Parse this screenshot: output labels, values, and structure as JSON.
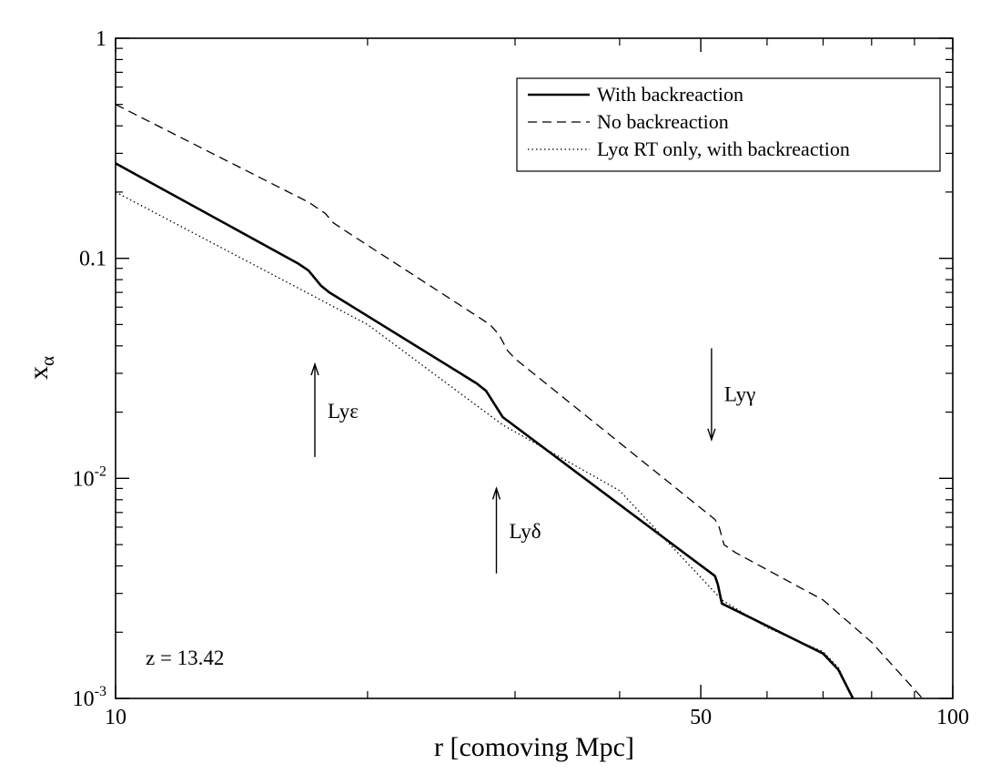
{
  "chart_data": {
    "type": "line",
    "x_scale": "log",
    "y_scale": "log",
    "xlim": [
      10,
      100
    ],
    "ylim": [
      0.001,
      1
    ],
    "xlabel": "r [comoving Mpc]",
    "ylabel": {
      "base": "x",
      "sub": "α"
    },
    "x_ticks": [
      {
        "value": 10,
        "label": "10"
      },
      {
        "value": 50,
        "label": "50"
      },
      {
        "value": 100,
        "label": "100"
      }
    ],
    "x_minor_ticks": [
      20,
      30,
      40,
      60,
      70,
      80,
      90
    ],
    "y_ticks": [
      {
        "value": 1,
        "base": "1",
        "exp": ""
      },
      {
        "value": 0.1,
        "base": "0.1",
        "exp": ""
      },
      {
        "value": 0.01,
        "base": "10",
        "exp": "-2"
      },
      {
        "value": 0.001,
        "base": "10",
        "exp": "-3"
      }
    ],
    "y_minor_ticks": [
      0.002,
      0.003,
      0.004,
      0.005,
      0.006,
      0.007,
      0.008,
      0.009,
      0.02,
      0.03,
      0.04,
      0.05,
      0.06,
      0.07,
      0.08,
      0.09,
      0.2,
      0.3,
      0.4,
      0.5,
      0.6,
      0.7,
      0.8,
      0.9
    ],
    "series": [
      {
        "name": "With backreaction",
        "style": "solid",
        "points": [
          [
            10,
            0.27
          ],
          [
            16.5,
            0.095
          ],
          [
            17,
            0.088
          ],
          [
            17.6,
            0.075
          ],
          [
            18,
            0.07
          ],
          [
            27,
            0.027
          ],
          [
            27.7,
            0.025
          ],
          [
            28.3,
            0.022
          ],
          [
            29,
            0.019
          ],
          [
            52,
            0.0036
          ],
          [
            52.4,
            0.0033
          ],
          [
            53,
            0.0027
          ],
          [
            70,
            0.0016
          ],
          [
            73,
            0.00135
          ],
          [
            76,
            0.001
          ]
        ]
      },
      {
        "name": "No backreaction",
        "style": "dashed",
        "points": [
          [
            10,
            0.5
          ],
          [
            17,
            0.18
          ],
          [
            17.8,
            0.16
          ],
          [
            18.2,
            0.145
          ],
          [
            19,
            0.13
          ],
          [
            28,
            0.05
          ],
          [
            28.7,
            0.045
          ],
          [
            29.4,
            0.038
          ],
          [
            30,
            0.035
          ],
          [
            52,
            0.0065
          ],
          [
            52.6,
            0.006
          ],
          [
            53.3,
            0.005
          ],
          [
            55,
            0.0046
          ],
          [
            70,
            0.0028
          ],
          [
            80,
            0.0018
          ],
          [
            92,
            0.001
          ]
        ]
      },
      {
        "name": "Lyα RT only, with backreaction",
        "style": "dotted",
        "points": [
          [
            10,
            0.2
          ],
          [
            20,
            0.05
          ],
          [
            29,
            0.0175
          ],
          [
            40,
            0.0088
          ],
          [
            53,
            0.0028
          ],
          [
            60,
            0.0021
          ],
          [
            70,
            0.00163
          ],
          [
            73,
            0.00138
          ],
          [
            76,
            0.001
          ]
        ]
      }
    ],
    "annotations": [
      {
        "label": "Lyε",
        "x": 17.3,
        "y_from": 0.0125,
        "y_to": 0.033,
        "direction": "up"
      },
      {
        "label": "Lyδ",
        "x": 28.5,
        "y_from": 0.0037,
        "y_to": 0.009,
        "direction": "up"
      },
      {
        "label": "Lyγ",
        "x": 51.5,
        "y_from": 0.039,
        "y_to": 0.015,
        "direction": "down"
      }
    ],
    "text_annotations": [
      {
        "label": "z = 13.42",
        "position": "bottom-left"
      }
    ],
    "legend_position": "top-right",
    "grid": false
  }
}
